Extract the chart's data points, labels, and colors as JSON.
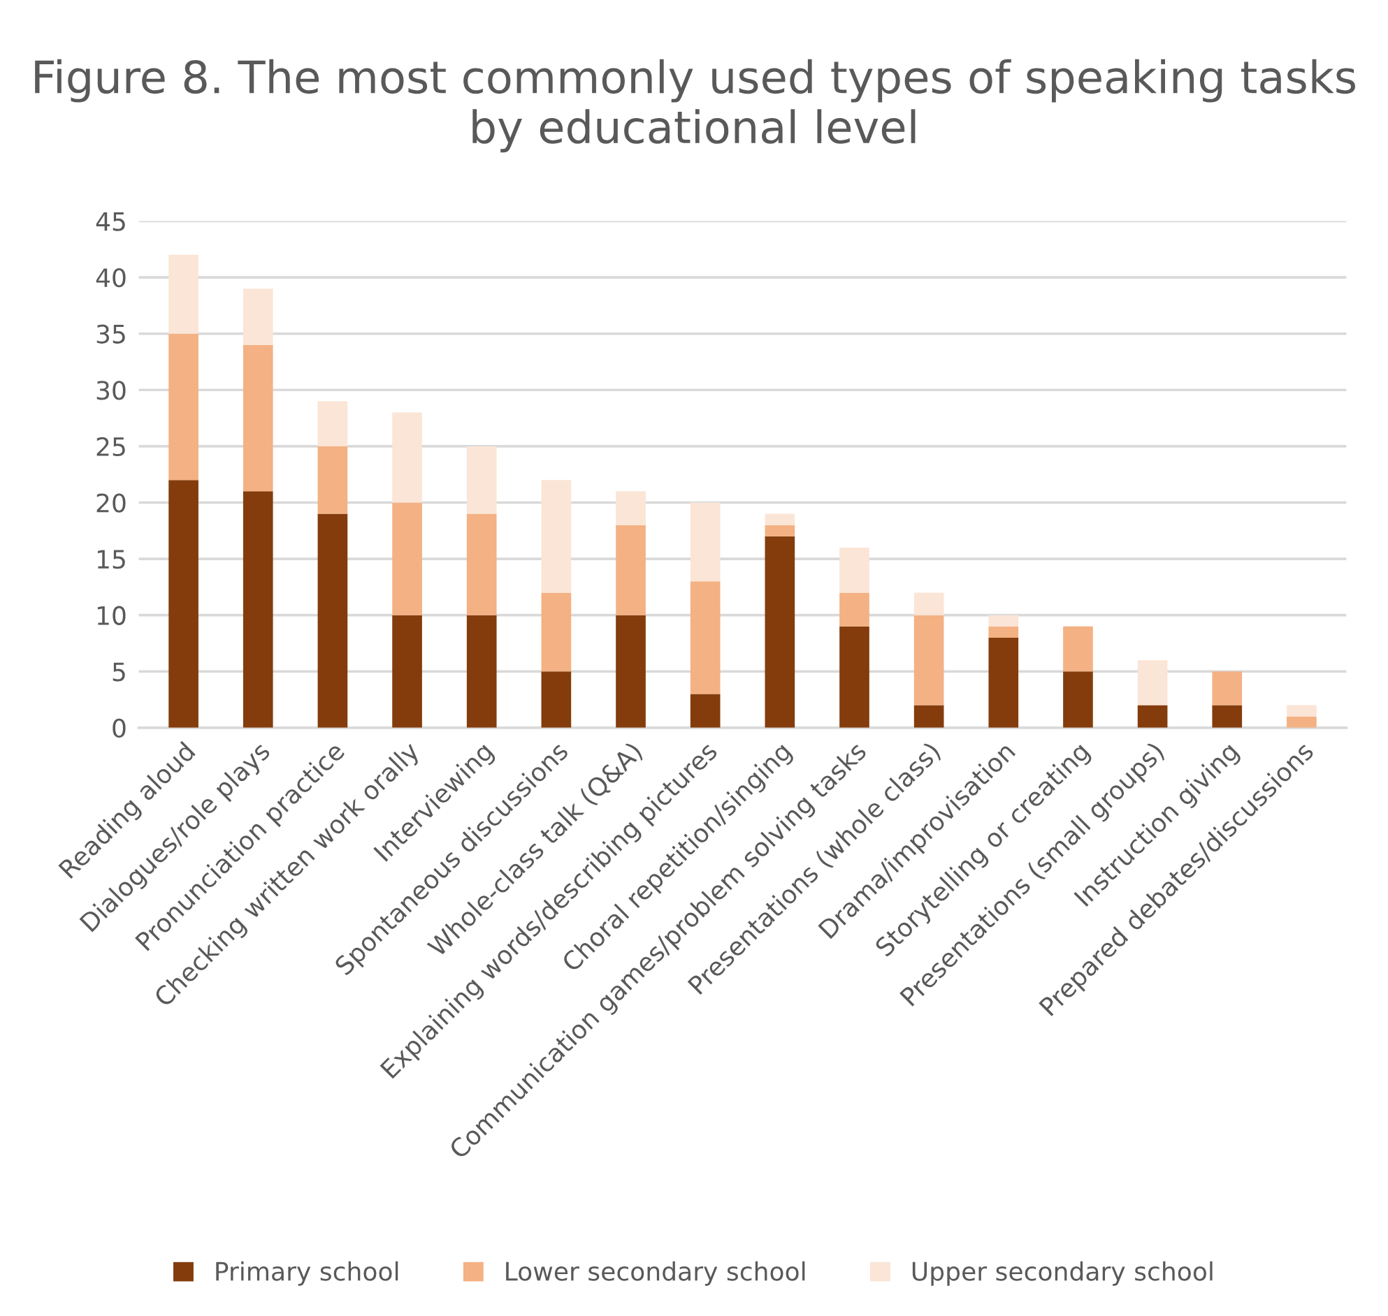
{
  "chart_data": {
    "type": "bar",
    "stacked": true,
    "title": "Figure 8. The most commonly used types of speaking tasks by educational level",
    "categories": [
      "Reading aloud",
      "Dialogues/role plays",
      "Pronunciation practice",
      "Checking written work orally",
      "Interviewing",
      "Spontaneous discussions",
      "Whole-class talk (Q&A)",
      "Explaining words/describing pictures",
      "Choral repetition/singing",
      "Communication games/problem solving tasks",
      "Presentations (whole class)",
      "Drama/improvisation",
      "Storytelling or creating",
      "Presentations (small groups)",
      "Instruction giving",
      "Prepared debates/discussions"
    ],
    "series": [
      {
        "name": "Primary school",
        "color": "#843c0c",
        "values": [
          22,
          21,
          19,
          10,
          10,
          5,
          10,
          3,
          17,
          9,
          2,
          8,
          5,
          2,
          2,
          0
        ]
      },
      {
        "name": "Lower secondary school",
        "color": "#f4b183",
        "values": [
          13,
          13,
          6,
          10,
          9,
          7,
          8,
          10,
          1,
          3,
          8,
          1,
          4,
          0,
          3,
          1
        ]
      },
      {
        "name": "Upper secondary school",
        "color": "#fbe5d6",
        "values": [
          7,
          5,
          4,
          8,
          6,
          10,
          3,
          7,
          1,
          4,
          2,
          1,
          0,
          4,
          0,
          1
        ]
      }
    ],
    "ylim": [
      0,
      45
    ],
    "yticks": [
      0,
      5,
      10,
      15,
      20,
      25,
      30,
      35,
      40,
      45
    ],
    "grid": "y",
    "legend": "bottom"
  }
}
